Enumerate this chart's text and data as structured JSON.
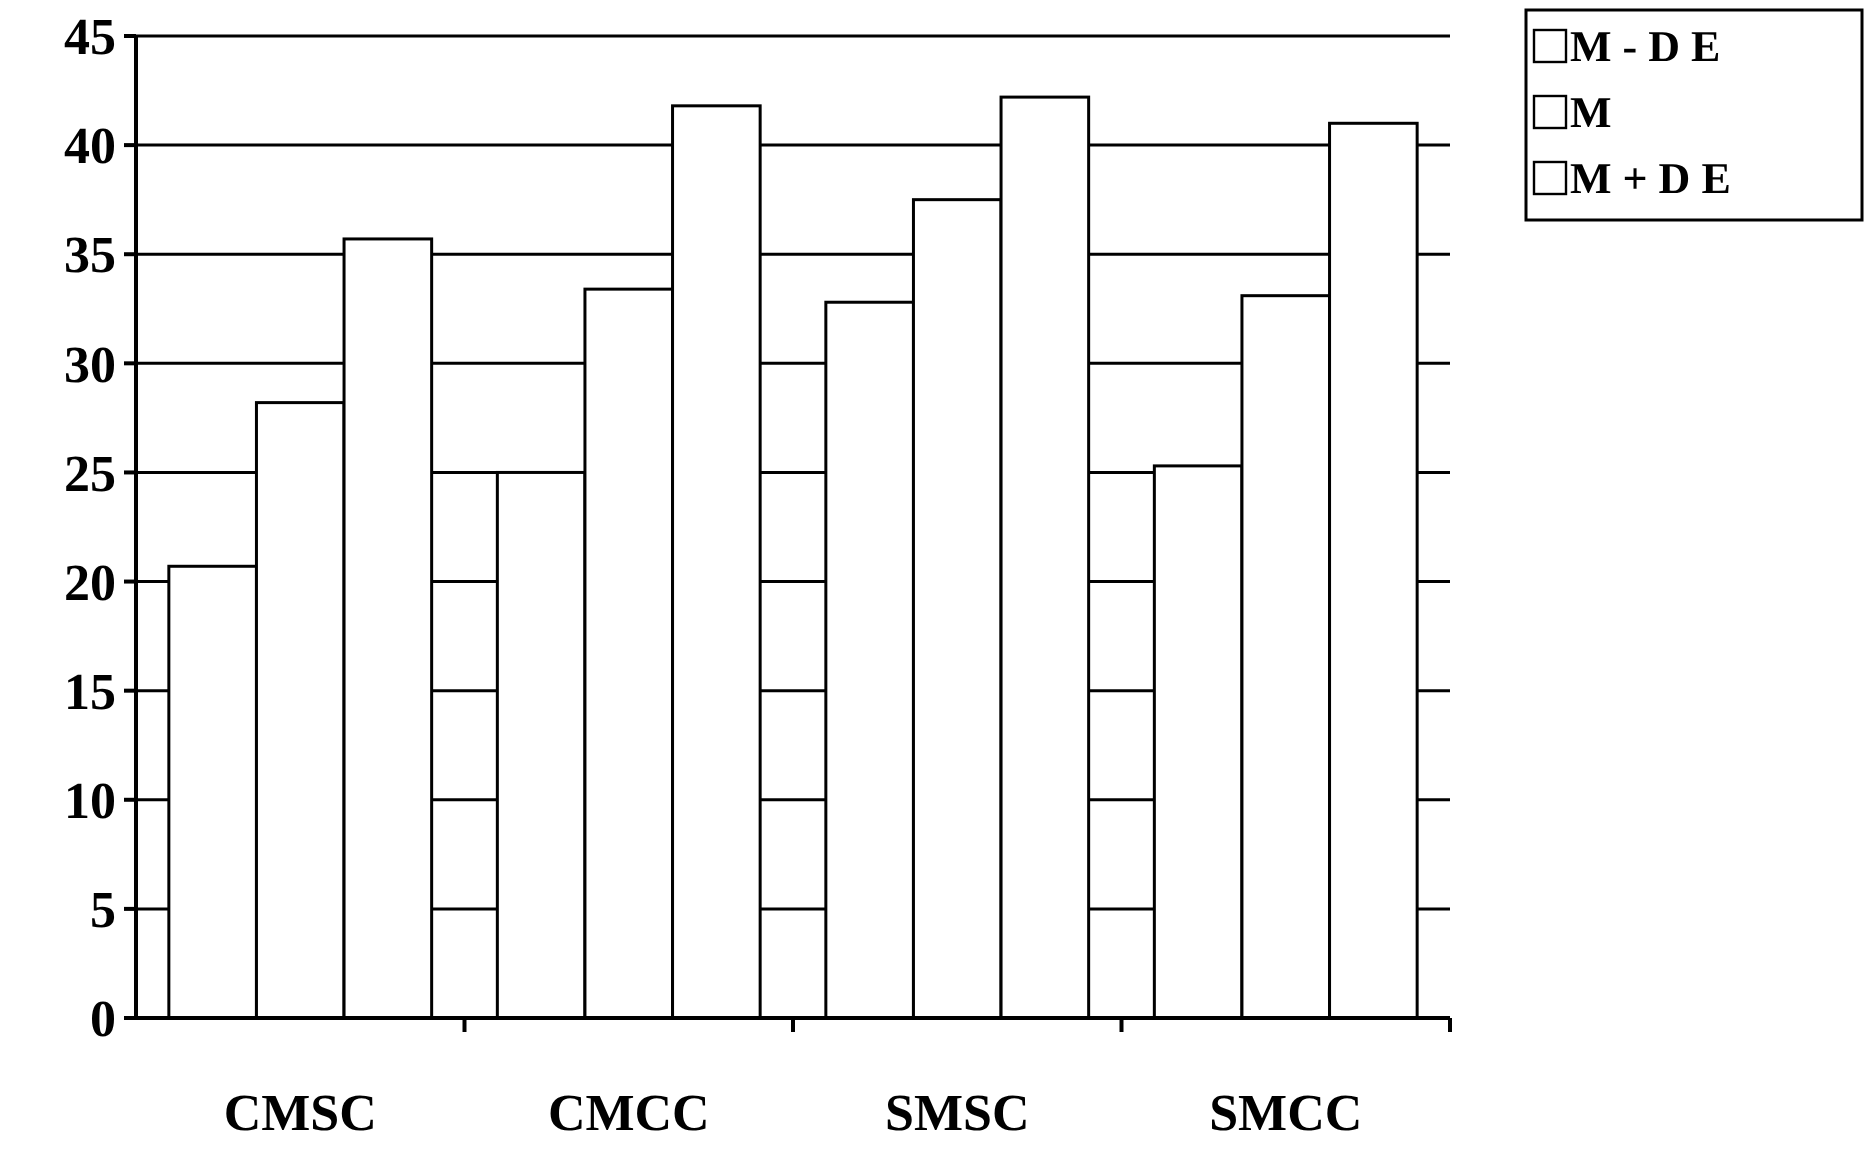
{
  "chart_data": {
    "type": "bar",
    "categories": [
      "CMSC",
      "CMCC",
      "SMSC",
      "SMCC"
    ],
    "series": [
      {
        "name": "M - D E",
        "color": "#ffffff",
        "values": [
          20.7,
          25,
          32.8,
          25.3
        ]
      },
      {
        "name": "M",
        "color": "#ffffff",
        "values": [
          28.2,
          33.4,
          37.5,
          33.1
        ]
      },
      {
        "name": "M + D E",
        "color": "#ffffff",
        "values": [
          35.7,
          41.8,
          42.2,
          41
        ]
      }
    ],
    "ylim": [
      0,
      45
    ],
    "yticks": [
      0,
      5,
      10,
      15,
      20,
      25,
      30,
      35,
      40,
      45
    ],
    "grid": "y",
    "legend": "top right"
  }
}
